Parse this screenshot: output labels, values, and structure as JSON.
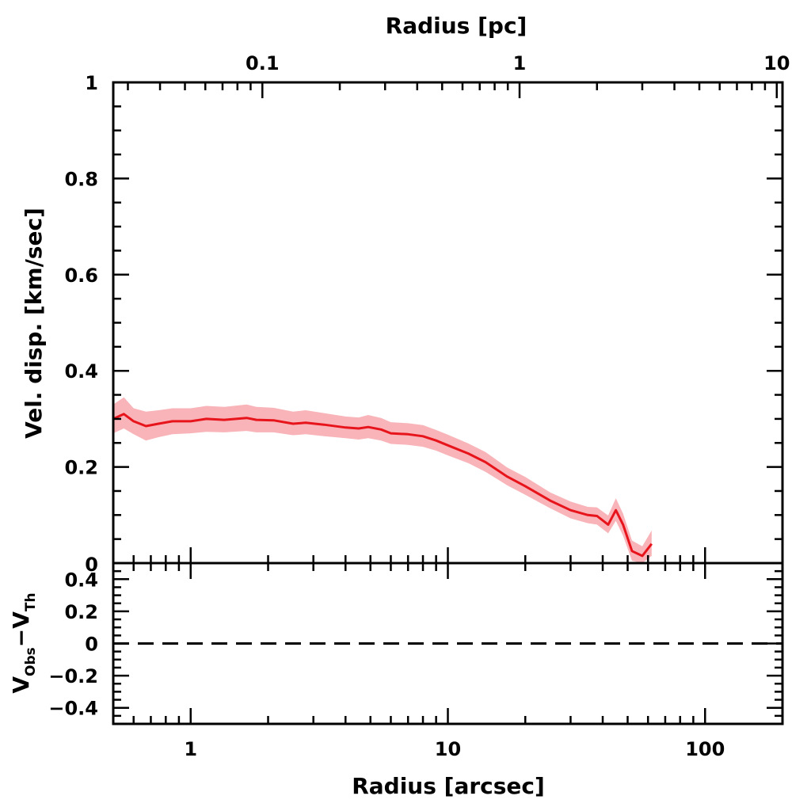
{
  "chart_data": [
    {
      "type": "line",
      "panel": "main",
      "x_scale": "log",
      "xlabel": "Radius [arcsec]",
      "xlim": [
        0.5,
        200
      ],
      "x_ticks": [
        {
          "value": 1,
          "label": "1"
        },
        {
          "value": 10,
          "label": "10"
        },
        {
          "value": 100,
          "label": "100"
        }
      ],
      "x2label": "Radius [pc]",
      "x2_ticks": [
        {
          "value": 0.1,
          "label": "0.1"
        },
        {
          "value": 1,
          "label": "1"
        },
        {
          "value": 10,
          "label": "10"
        }
      ],
      "x2_arcsec_per_pc": 19.0,
      "ylabel": "Vel. disp. [km/sec]",
      "ylim": [
        0,
        1
      ],
      "y_ticks": [
        {
          "value": 0,
          "label": "0"
        },
        {
          "value": 0.2,
          "label": "0.2"
        },
        {
          "value": 0.4,
          "label": "0.4"
        },
        {
          "value": 0.6,
          "label": "0.6"
        },
        {
          "value": 0.8,
          "label": "0.8"
        },
        {
          "value": 1,
          "label": "1"
        }
      ],
      "line_color": "#e8141c",
      "band_color": "#f8b4b8",
      "series": [
        {
          "x": [
            0.5,
            0.55,
            0.6,
            0.67,
            0.75,
            0.85,
            1.0,
            1.15,
            1.35,
            1.65,
            1.8,
            2.1,
            2.5,
            2.8,
            3.3,
            4.0,
            4.5,
            4.9,
            5.5,
            6.0,
            7.0,
            8.0,
            9.0,
            10.0,
            12.0,
            14.0,
            17.0,
            20.0,
            25.0,
            30.0,
            35.0,
            38.0,
            42.0,
            45.0,
            48.0,
            52.0,
            57.0,
            62.0
          ],
          "y": [
            0.3,
            0.31,
            0.295,
            0.285,
            0.29,
            0.295,
            0.295,
            0.3,
            0.298,
            0.302,
            0.298,
            0.297,
            0.29,
            0.292,
            0.288,
            0.282,
            0.28,
            0.283,
            0.278,
            0.27,
            0.268,
            0.264,
            0.255,
            0.245,
            0.228,
            0.21,
            0.18,
            0.16,
            0.13,
            0.11,
            0.1,
            0.098,
            0.08,
            0.11,
            0.08,
            0.025,
            0.015,
            0.04
          ],
          "y_low": [
            0.27,
            0.28,
            0.268,
            0.255,
            0.262,
            0.268,
            0.27,
            0.273,
            0.272,
            0.275,
            0.272,
            0.272,
            0.266,
            0.268,
            0.264,
            0.26,
            0.257,
            0.26,
            0.255,
            0.248,
            0.246,
            0.242,
            0.234,
            0.224,
            0.208,
            0.19,
            0.162,
            0.142,
            0.114,
            0.093,
            0.083,
            0.08,
            0.062,
            0.088,
            0.057,
            0.005,
            0.0,
            0.015
          ],
          "y_high": [
            0.33,
            0.345,
            0.322,
            0.315,
            0.318,
            0.322,
            0.322,
            0.327,
            0.325,
            0.33,
            0.325,
            0.323,
            0.315,
            0.318,
            0.312,
            0.305,
            0.303,
            0.308,
            0.302,
            0.293,
            0.291,
            0.287,
            0.277,
            0.267,
            0.249,
            0.231,
            0.199,
            0.179,
            0.147,
            0.128,
            0.117,
            0.116,
            0.099,
            0.135,
            0.103,
            0.047,
            0.035,
            0.068
          ]
        }
      ]
    },
    {
      "type": "line",
      "panel": "residual",
      "x_scale": "log",
      "xlim": [
        0.5,
        200
      ],
      "ylabel_main": "V",
      "ylabel_sub1": "Obs",
      "ylabel_dash": "−V",
      "ylabel_sub2": "Th",
      "ylim": [
        -0.5,
        0.5
      ],
      "y_ticks": [
        {
          "value": -0.4,
          "label": "−0.4"
        },
        {
          "value": -0.2,
          "label": "−0.2"
        },
        {
          "value": 0,
          "label": "0"
        },
        {
          "value": 0.2,
          "label": "0.2"
        },
        {
          "value": 0.4,
          "label": "0.4"
        }
      ],
      "reference_line": {
        "y": 0,
        "style": "dashed"
      }
    }
  ]
}
